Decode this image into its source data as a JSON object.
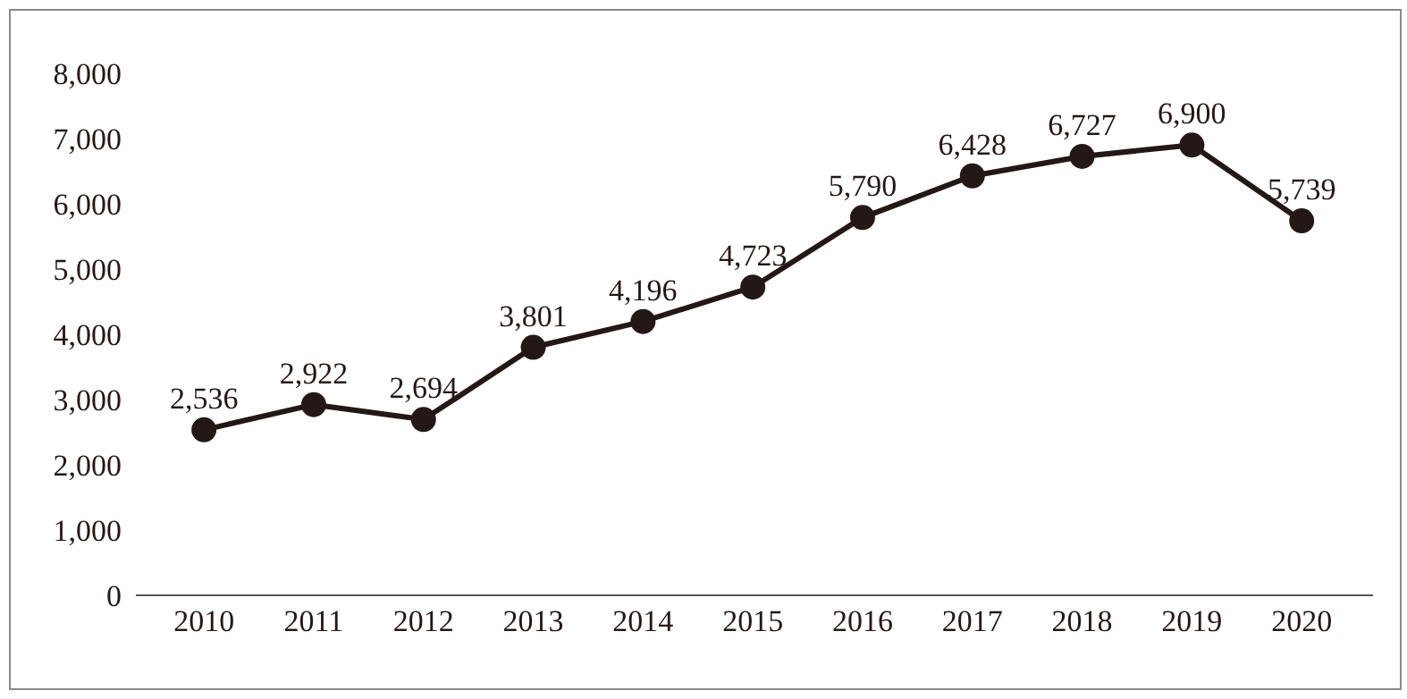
{
  "chart_data": {
    "type": "line",
    "categories": [
      "2010",
      "2011",
      "2012",
      "2013",
      "2014",
      "2015",
      "2016",
      "2017",
      "2018",
      "2019",
      "2020"
    ],
    "series": [
      {
        "color": "#231815",
        "values": [
          2536,
          2922,
          2694,
          3801,
          4196,
          4723,
          5790,
          6428,
          6727,
          6900,
          5739
        ],
        "value_labels": [
          "2,536",
          "2,922",
          "2,694",
          "3,801",
          "4,196",
          "4,723",
          "5,790",
          "6,428",
          "6,727",
          "6,900",
          "5,739"
        ]
      }
    ],
    "ylim": [
      0,
      8000
    ],
    "yticks": [
      {
        "value": 0,
        "label": "0"
      },
      {
        "value": 1000,
        "label": "1,000"
      },
      {
        "value": 2000,
        "label": "2,000"
      },
      {
        "value": 3000,
        "label": "3,000"
      },
      {
        "value": 4000,
        "label": "4,000"
      },
      {
        "value": 5000,
        "label": "5,000"
      },
      {
        "value": 6000,
        "label": "6,000"
      },
      {
        "value": 7000,
        "label": "7,000"
      },
      {
        "value": 8000,
        "label": "8,000"
      }
    ],
    "grid": false,
    "legend": false,
    "marker": "circle",
    "line_style": "solid"
  }
}
